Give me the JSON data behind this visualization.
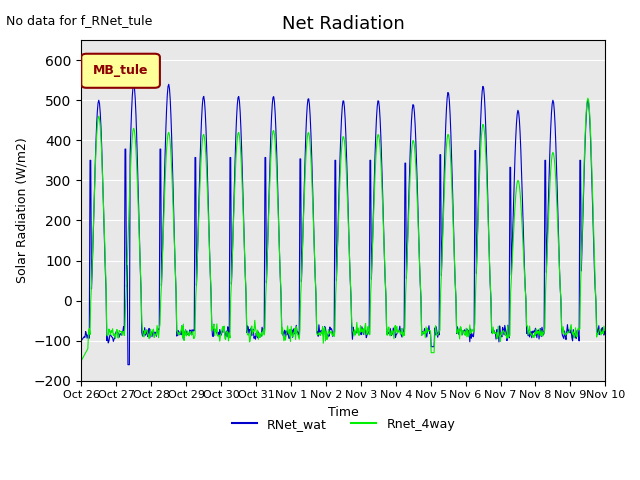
{
  "title": "Net Radiation",
  "xlabel": "Time",
  "ylabel": "Solar Radiation (W/m2)",
  "note": "No data for f_RNet_tule",
  "legend_label": "MB_tule",
  "ylim": [
    -200,
    650
  ],
  "yticks": [
    -200,
    -100,
    0,
    100,
    200,
    300,
    400,
    500,
    600
  ],
  "x_tick_labels": [
    "Oct 26",
    "Oct 27",
    "Oct 28",
    "Oct 29",
    "Oct 30",
    "Oct 31",
    "Nov 1",
    "Nov 2",
    "Nov 3",
    "Nov 4",
    "Nov 5",
    "Nov 6",
    "Nov 7",
    "Nov 8",
    "Nov 9",
    "Nov 10"
  ],
  "line1_color": "#0000cc",
  "line2_color": "#00ee00",
  "line1_label": "RNet_wat",
  "line2_label": "Rnet_4way",
  "bg_color": "#e8e8e8",
  "legend_box_color": "#ffff99",
  "legend_box_edge": "#8b0000",
  "days": 15,
  "pts_per_day": 48
}
